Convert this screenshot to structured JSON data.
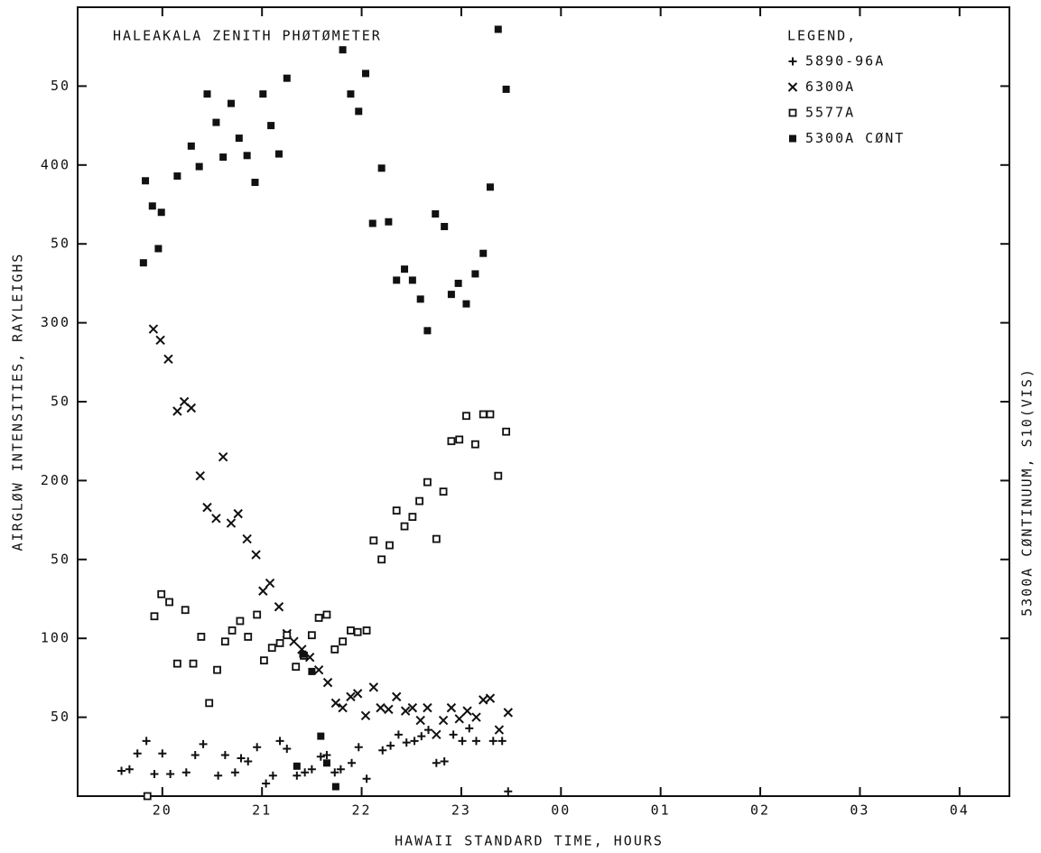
{
  "chart_data": {
    "type": "scatter",
    "title": "HALEAKALA ZENITH PHØTØMETER",
    "x_label": "HAWAII STANDARD TIME, HOURS",
    "y_label": "AIRGLØW INTENSITIES, RAYLEIGHS",
    "y2_label": "5300A CØNTINUUM, S10(VIS)",
    "legend_title": "LEGEND,",
    "legend_position": "top-right",
    "xlim": [
      19.15,
      28.5
    ],
    "ylim": [
      0,
      500
    ],
    "xticks": [
      20,
      21,
      22,
      23,
      {
        "value": 24,
        "label": "00"
      },
      {
        "value": 25,
        "label": "01"
      },
      {
        "value": 26,
        "label": "02"
      },
      {
        "value": 27,
        "label": "03"
      },
      {
        "value": 28,
        "label": "04"
      }
    ],
    "yticks": [
      50,
      100,
      {
        "value": 150,
        "label": "50"
      },
      200,
      {
        "value": 250,
        "label": "50"
      },
      300,
      {
        "value": 350,
        "label": "50"
      },
      400,
      {
        "value": 450,
        "label": "50"
      }
    ],
    "series": [
      {
        "name": "5890-96A",
        "marker": "plus",
        "color": "#111111",
        "x": [
          19.59,
          19.67,
          19.75,
          19.84,
          19.92,
          20,
          20.08,
          20.24,
          20.33,
          20.41,
          20.56,
          20.63,
          20.73,
          20.79,
          20.86,
          20.95,
          21.04,
          21.11,
          21.18,
          21.25,
          21.35,
          21.43,
          21.5,
          21.59,
          21.65,
          21.73,
          21.79,
          21.9,
          21.97,
          22.05,
          22.21,
          22.29,
          22.37,
          22.45,
          22.53,
          22.6,
          22.67,
          22.75,
          22.83,
          22.92,
          23.01,
          23.08,
          23.15,
          23.32,
          23.41,
          23.47
        ],
        "values": [
          16,
          17,
          27,
          35,
          14,
          27,
          14,
          15,
          26,
          33,
          13,
          26,
          15,
          24,
          22,
          31,
          8,
          13,
          35,
          30,
          13,
          15,
          17,
          25,
          26,
          15,
          17,
          21,
          31,
          11,
          29,
          32,
          39,
          34,
          35,
          38,
          42,
          21,
          22,
          39,
          35,
          43,
          35,
          35,
          35,
          3
        ]
      },
      {
        "name": "6300A",
        "marker": "cross",
        "color": "#111111",
        "x": [
          19.91,
          19.98,
          20.06,
          20.15,
          20.22,
          20.29,
          20.38,
          20.61,
          20.45,
          20.54,
          20.69,
          20.76,
          20.85,
          20.94,
          21.01,
          21.08,
          21.17,
          21.25,
          21.32,
          21.4,
          21.48,
          21.57,
          21.66,
          21.74,
          21.81,
          21.89,
          21.96,
          22.04,
          22.12,
          22.19,
          22.27,
          22.35,
          22.44,
          22.51,
          22.59,
          22.66,
          22.75,
          22.82,
          22.9,
          22.98,
          23.06,
          23.15,
          23.22,
          23.29,
          23.38,
          23.47
        ],
        "values": [
          296,
          289,
          277,
          244,
          250,
          246,
          203,
          215,
          183,
          176,
          173,
          179,
          163,
          153,
          130,
          135,
          120,
          103,
          98,
          93,
          88,
          80,
          72,
          59,
          56,
          63,
          65,
          51,
          69,
          56,
          55,
          63,
          54,
          56,
          48,
          56,
          39,
          48,
          56,
          49,
          54,
          50,
          61,
          62,
          42,
          53
        ]
      },
      {
        "name": "5577A",
        "marker": "square-open",
        "color": "#111111",
        "x": [
          19.85,
          19.92,
          19.99,
          20.07,
          20.15,
          20.23,
          20.31,
          20.39,
          20.47,
          20.55,
          20.63,
          20.7,
          20.78,
          20.86,
          20.95,
          21.02,
          21.1,
          21.18,
          21.25,
          21.34,
          21.42,
          21.5,
          21.57,
          21.65,
          21.73,
          21.81,
          21.89,
          21.96,
          22.05,
          22.12,
          22.2,
          22.28,
          22.35,
          22.43,
          22.51,
          22.58,
          22.66,
          22.75,
          22.82,
          22.9,
          22.98,
          23.05,
          23.14,
          23.22,
          23.29,
          23.37,
          23.45
        ],
        "values": [
          0,
          114,
          128,
          123,
          84,
          118,
          84,
          101,
          59,
          80,
          98,
          105,
          111,
          101,
          115,
          86,
          94,
          97,
          102,
          82,
          89,
          102,
          113,
          115,
          93,
          98,
          105,
          104,
          105,
          162,
          150,
          159,
          181,
          171,
          177,
          187,
          199,
          163,
          193,
          225,
          226,
          241,
          223,
          242,
          242,
          203,
          231
        ]
      },
      {
        "name": "5300A CØNT",
        "marker": "square-filled",
        "color": "#111111",
        "x": [
          19.83,
          19.9,
          19.99,
          19.81,
          19.96,
          20.15,
          20.29,
          20.37,
          20.45,
          20.54,
          20.61,
          20.69,
          20.77,
          20.85,
          20.93,
          21.01,
          21.09,
          21.17,
          21.25,
          21.81,
          21.89,
          21.97,
          22.04,
          22.2,
          22.11,
          22.27,
          22.35,
          22.43,
          22.51,
          22.59,
          22.66,
          22.74,
          22.83,
          22.9,
          22.97,
          23.05,
          23.14,
          23.22,
          23.29,
          23.37,
          23.45,
          21.41,
          21.5,
          21.59,
          21.35,
          21.65,
          21.74
        ],
        "values": [
          390,
          374,
          370,
          338,
          347,
          393,
          412,
          399,
          445,
          427,
          405,
          439,
          417,
          406,
          389,
          445,
          425,
          407,
          455,
          473,
          445,
          434,
          458,
          398,
          363,
          364,
          327,
          334,
          327,
          315,
          295,
          369,
          361,
          318,
          325,
          312,
          331,
          344,
          386,
          486,
          448,
          90,
          79,
          38,
          19,
          21,
          6
        ]
      }
    ]
  }
}
